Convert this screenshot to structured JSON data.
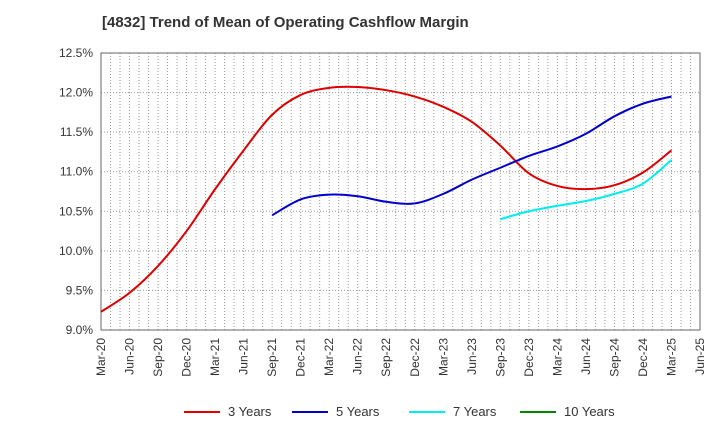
{
  "chart_data": {
    "type": "line",
    "title": "[4832]  Trend of Mean of Operating Cashflow Margin",
    "xlabel": "",
    "ylabel": "",
    "ylim": [
      9.0,
      12.5
    ],
    "yticks": [
      "9.0%",
      "9.5%",
      "10.0%",
      "10.5%",
      "11.0%",
      "11.5%",
      "12.0%",
      "12.5%"
    ],
    "xticks": [
      "Mar-20",
      "Jun-20",
      "Sep-20",
      "Dec-20",
      "Mar-21",
      "Jun-21",
      "Sep-21",
      "Dec-21",
      "Mar-22",
      "Jun-22",
      "Sep-22",
      "Dec-22",
      "Mar-23",
      "Jun-23",
      "Sep-23",
      "Dec-23",
      "Mar-24",
      "Jun-24",
      "Sep-24",
      "Dec-24",
      "Mar-25",
      "Jun-25"
    ],
    "grid": true,
    "legend_position": "bottom",
    "series": [
      {
        "name": "3 Years",
        "color": "#dd0000",
        "x": [
          "Mar-20",
          "Jun-20",
          "Sep-20",
          "Dec-20",
          "Mar-21",
          "Jun-21",
          "Sep-21",
          "Dec-21",
          "Mar-22",
          "Jun-22",
          "Sep-22",
          "Dec-22",
          "Mar-23",
          "Jun-23",
          "Sep-23",
          "Dec-23",
          "Mar-24",
          "Jun-24",
          "Sep-24",
          "Dec-24",
          "Mar-25"
        ],
        "values": [
          9.23,
          9.47,
          9.81,
          10.25,
          10.78,
          11.27,
          11.72,
          11.97,
          12.06,
          12.07,
          12.03,
          11.95,
          11.82,
          11.63,
          11.33,
          10.98,
          10.82,
          10.78,
          10.83,
          10.99,
          11.27
        ]
      },
      {
        "name": "5 Years",
        "color": "#0000cc",
        "x": [
          "Sep-21",
          "Dec-21",
          "Mar-22",
          "Jun-22",
          "Sep-22",
          "Dec-22",
          "Mar-23",
          "Jun-23",
          "Sep-23",
          "Dec-23",
          "Mar-24",
          "Jun-24",
          "Sep-24",
          "Dec-24",
          "Mar-25"
        ],
        "values": [
          10.45,
          10.65,
          10.71,
          10.69,
          10.62,
          10.6,
          10.72,
          10.9,
          11.05,
          11.2,
          11.32,
          11.48,
          11.7,
          11.86,
          11.95
        ]
      },
      {
        "name": "7 Years",
        "color": "#00eeee",
        "x": [
          "Sep-23",
          "Dec-23",
          "Mar-24",
          "Jun-24",
          "Sep-24",
          "Dec-24",
          "Mar-25"
        ],
        "values": [
          10.4,
          10.5,
          10.57,
          10.63,
          10.72,
          10.85,
          11.15
        ]
      },
      {
        "name": "10 Years",
        "color": "#008800",
        "x": [],
        "values": []
      }
    ]
  }
}
